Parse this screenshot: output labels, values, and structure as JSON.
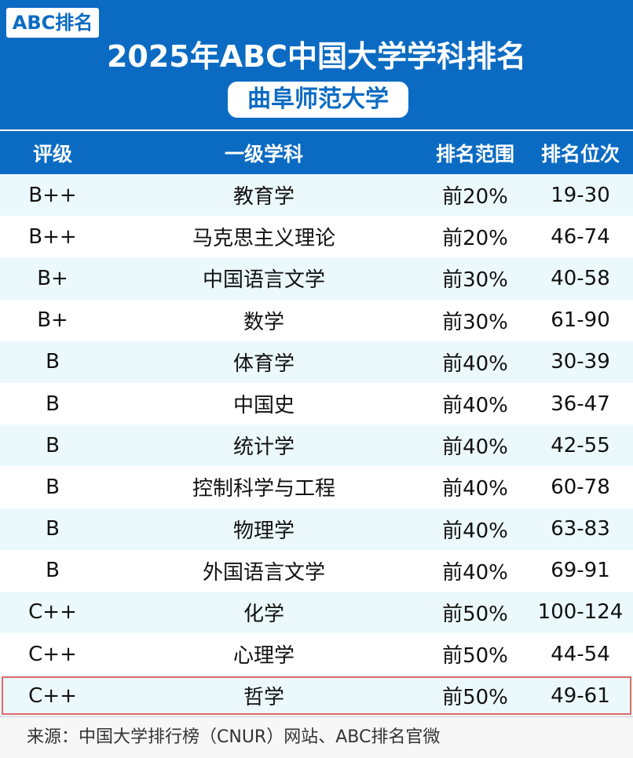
{
  "header": {
    "badge": "ABC排名",
    "title": "2025年ABC中国大学学科排名",
    "subtitle": "曲阜师范大学"
  },
  "table": {
    "columns": [
      "评级",
      "一级学科",
      "排名范围",
      "排名位次"
    ],
    "rows": [
      [
        "B++",
        "教育学",
        "前20%",
        "19-30"
      ],
      [
        "B++",
        "马克思主义理论",
        "前20%",
        "46-74"
      ],
      [
        "B+",
        "中国语言文学",
        "前30%",
        "40-58"
      ],
      [
        "B+",
        "数学",
        "前30%",
        "61-90"
      ],
      [
        "B",
        "体育学",
        "前40%",
        "30-39"
      ],
      [
        "B",
        "中国史",
        "前40%",
        "36-47"
      ],
      [
        "B",
        "统计学",
        "前40%",
        "42-55"
      ],
      [
        "B",
        "控制科学与工程",
        "前40%",
        "60-78"
      ],
      [
        "B",
        "物理学",
        "前40%",
        "63-83"
      ],
      [
        "B",
        "外国语言文学",
        "前40%",
        "69-91"
      ],
      [
        "C++",
        "化学",
        "前50%",
        "100-124"
      ],
      [
        "C++",
        "心理学",
        "前50%",
        "44-54"
      ],
      [
        "C++",
        "哲学",
        "前50%",
        "49-61"
      ]
    ]
  },
  "footer": {
    "source": "来源：中国大学排行榜（CNUR）网站、ABC排名官微"
  }
}
